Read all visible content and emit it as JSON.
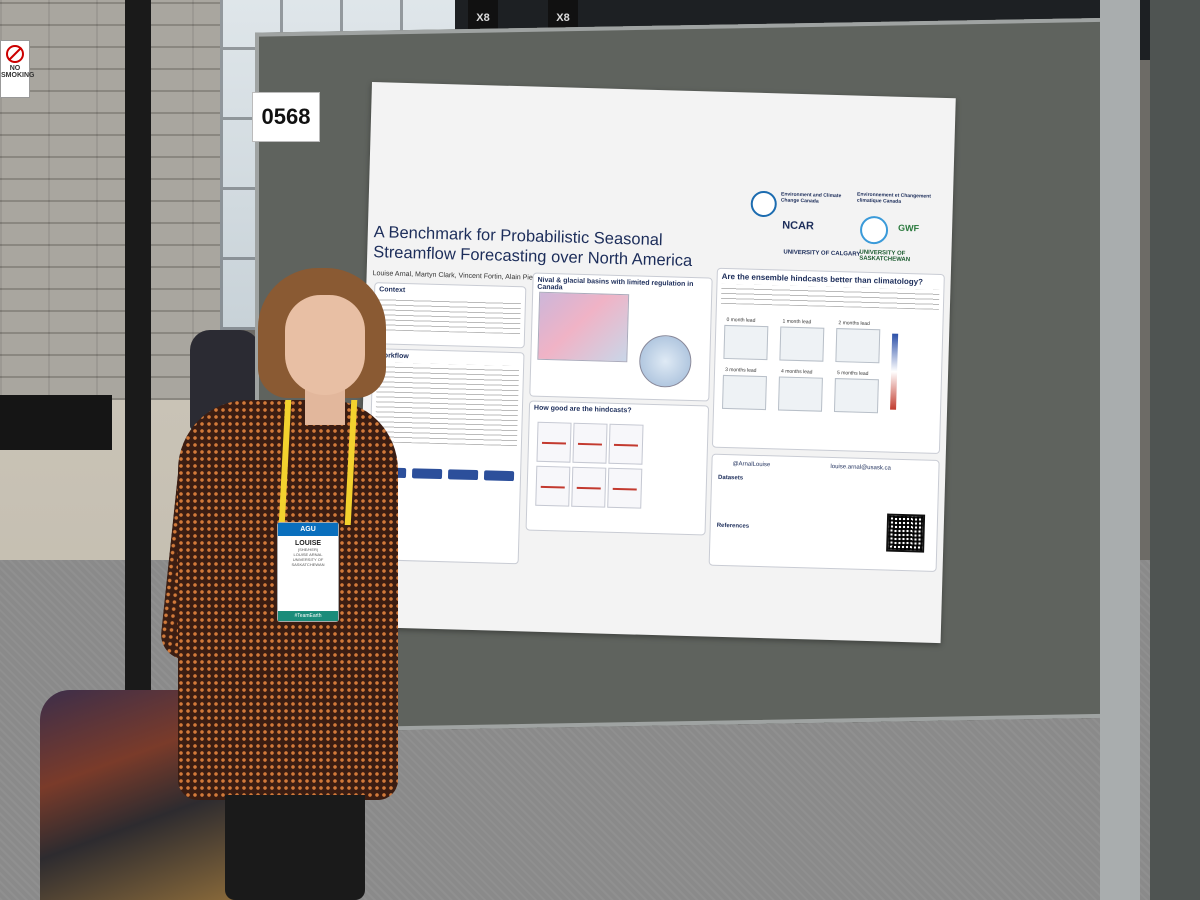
{
  "signs": {
    "no_smoking": "NO SMOKING",
    "board_number": "0568",
    "hall_sign_1": "X8",
    "hall_sign_2": "X8"
  },
  "poster": {
    "title_line1": "A Benchmark for Probabilistic Seasonal",
    "title_line2": "Streamflow Forecasting over North America",
    "authors": "Louise Arnal, Martyn Clark, Vincent Fortin, Alain Pietroniro, Vincent Vionnet, Paul H. Whitfield, Andy Wood",
    "logos": {
      "eccc": "Environment and Climate Change Canada",
      "eccc_fr": "Environnement et Changement climatique Canada",
      "ncar": "NCAR",
      "gwf": "GWF",
      "calgary": "UNIVERSITY OF CALGARY",
      "saskatchewan": "UNIVERSITY OF SASKATCHEWAN"
    },
    "sections": {
      "context": "Context",
      "workflow": "Workflow",
      "basins": "Nival & glacial basins with limited regulation in Canada",
      "how_good": "How good are the hindcasts?",
      "better": "Are the ensemble hindcasts better than climatology?",
      "datasets": "Datasets",
      "references": "References"
    },
    "leads": [
      "0 month lead",
      "1 month lead",
      "2 months lead",
      "3 months lead",
      "4 months lead",
      "5 months lead"
    ],
    "contact": {
      "twitter": "@ArnalLouise",
      "email": "louise.arnal@usask.ca"
    }
  },
  "badge": {
    "header": "AGU",
    "name": "LOUISE",
    "pronoun": "(SHE/HER)",
    "fullname": "LOUISE ARNAL",
    "affiliation": "UNIVERSITY OF SASKATCHEWAN",
    "footer": "#TeamEarth"
  }
}
